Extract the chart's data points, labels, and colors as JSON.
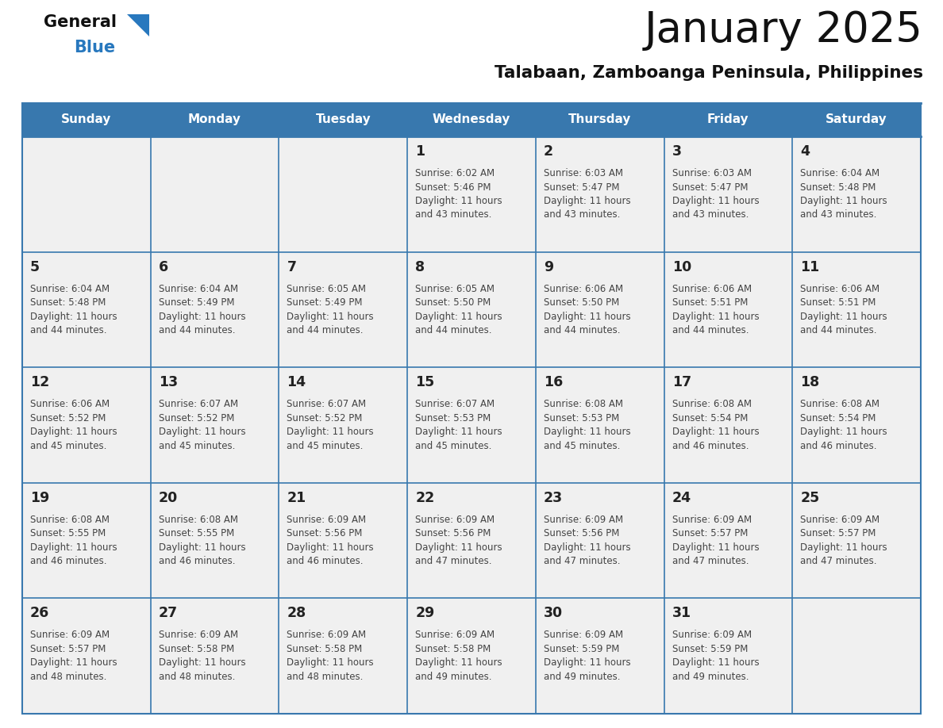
{
  "title": "January 2025",
  "subtitle": "Talabaan, Zamboanga Peninsula, Philippines",
  "header_bg_color": "#3878ae",
  "header_text_color": "#FFFFFF",
  "day_names": [
    "Sunday",
    "Monday",
    "Tuesday",
    "Wednesday",
    "Thursday",
    "Friday",
    "Saturday"
  ],
  "cell_bg_color": "#f0f0f0",
  "cell_border_color": "#3878ae",
  "title_color": "#111111",
  "subtitle_color": "#111111",
  "day_num_color": "#222222",
  "text_color": "#444444",
  "logo_general_color": "#111111",
  "logo_blue_color": "#2878be",
  "logo_triangle_color": "#2878be",
  "days": [
    {
      "day": 1,
      "col": 3,
      "row": 0,
      "sunrise": "6:02 AM",
      "sunset": "5:46 PM",
      "daylight_h": "11 hours",
      "daylight_m": "43 minutes."
    },
    {
      "day": 2,
      "col": 4,
      "row": 0,
      "sunrise": "6:03 AM",
      "sunset": "5:47 PM",
      "daylight_h": "11 hours",
      "daylight_m": "43 minutes."
    },
    {
      "day": 3,
      "col": 5,
      "row": 0,
      "sunrise": "6:03 AM",
      "sunset": "5:47 PM",
      "daylight_h": "11 hours",
      "daylight_m": "43 minutes."
    },
    {
      "day": 4,
      "col": 6,
      "row": 0,
      "sunrise": "6:04 AM",
      "sunset": "5:48 PM",
      "daylight_h": "11 hours",
      "daylight_m": "43 minutes."
    },
    {
      "day": 5,
      "col": 0,
      "row": 1,
      "sunrise": "6:04 AM",
      "sunset": "5:48 PM",
      "daylight_h": "11 hours",
      "daylight_m": "44 minutes."
    },
    {
      "day": 6,
      "col": 1,
      "row": 1,
      "sunrise": "6:04 AM",
      "sunset": "5:49 PM",
      "daylight_h": "11 hours",
      "daylight_m": "44 minutes."
    },
    {
      "day": 7,
      "col": 2,
      "row": 1,
      "sunrise": "6:05 AM",
      "sunset": "5:49 PM",
      "daylight_h": "11 hours",
      "daylight_m": "44 minutes."
    },
    {
      "day": 8,
      "col": 3,
      "row": 1,
      "sunrise": "6:05 AM",
      "sunset": "5:50 PM",
      "daylight_h": "11 hours",
      "daylight_m": "44 minutes."
    },
    {
      "day": 9,
      "col": 4,
      "row": 1,
      "sunrise": "6:06 AM",
      "sunset": "5:50 PM",
      "daylight_h": "11 hours",
      "daylight_m": "44 minutes."
    },
    {
      "day": 10,
      "col": 5,
      "row": 1,
      "sunrise": "6:06 AM",
      "sunset": "5:51 PM",
      "daylight_h": "11 hours",
      "daylight_m": "44 minutes."
    },
    {
      "day": 11,
      "col": 6,
      "row": 1,
      "sunrise": "6:06 AM",
      "sunset": "5:51 PM",
      "daylight_h": "11 hours",
      "daylight_m": "44 minutes."
    },
    {
      "day": 12,
      "col": 0,
      "row": 2,
      "sunrise": "6:06 AM",
      "sunset": "5:52 PM",
      "daylight_h": "11 hours",
      "daylight_m": "45 minutes."
    },
    {
      "day": 13,
      "col": 1,
      "row": 2,
      "sunrise": "6:07 AM",
      "sunset": "5:52 PM",
      "daylight_h": "11 hours",
      "daylight_m": "45 minutes."
    },
    {
      "day": 14,
      "col": 2,
      "row": 2,
      "sunrise": "6:07 AM",
      "sunset": "5:52 PM",
      "daylight_h": "11 hours",
      "daylight_m": "45 minutes."
    },
    {
      "day": 15,
      "col": 3,
      "row": 2,
      "sunrise": "6:07 AM",
      "sunset": "5:53 PM",
      "daylight_h": "11 hours",
      "daylight_m": "45 minutes."
    },
    {
      "day": 16,
      "col": 4,
      "row": 2,
      "sunrise": "6:08 AM",
      "sunset": "5:53 PM",
      "daylight_h": "11 hours",
      "daylight_m": "45 minutes."
    },
    {
      "day": 17,
      "col": 5,
      "row": 2,
      "sunrise": "6:08 AM",
      "sunset": "5:54 PM",
      "daylight_h": "11 hours",
      "daylight_m": "46 minutes."
    },
    {
      "day": 18,
      "col": 6,
      "row": 2,
      "sunrise": "6:08 AM",
      "sunset": "5:54 PM",
      "daylight_h": "11 hours",
      "daylight_m": "46 minutes."
    },
    {
      "day": 19,
      "col": 0,
      "row": 3,
      "sunrise": "6:08 AM",
      "sunset": "5:55 PM",
      "daylight_h": "11 hours",
      "daylight_m": "46 minutes."
    },
    {
      "day": 20,
      "col": 1,
      "row": 3,
      "sunrise": "6:08 AM",
      "sunset": "5:55 PM",
      "daylight_h": "11 hours",
      "daylight_m": "46 minutes."
    },
    {
      "day": 21,
      "col": 2,
      "row": 3,
      "sunrise": "6:09 AM",
      "sunset": "5:56 PM",
      "daylight_h": "11 hours",
      "daylight_m": "46 minutes."
    },
    {
      "day": 22,
      "col": 3,
      "row": 3,
      "sunrise": "6:09 AM",
      "sunset": "5:56 PM",
      "daylight_h": "11 hours",
      "daylight_m": "47 minutes."
    },
    {
      "day": 23,
      "col": 4,
      "row": 3,
      "sunrise": "6:09 AM",
      "sunset": "5:56 PM",
      "daylight_h": "11 hours",
      "daylight_m": "47 minutes."
    },
    {
      "day": 24,
      "col": 5,
      "row": 3,
      "sunrise": "6:09 AM",
      "sunset": "5:57 PM",
      "daylight_h": "11 hours",
      "daylight_m": "47 minutes."
    },
    {
      "day": 25,
      "col": 6,
      "row": 3,
      "sunrise": "6:09 AM",
      "sunset": "5:57 PM",
      "daylight_h": "11 hours",
      "daylight_m": "47 minutes."
    },
    {
      "day": 26,
      "col": 0,
      "row": 4,
      "sunrise": "6:09 AM",
      "sunset": "5:57 PM",
      "daylight_h": "11 hours",
      "daylight_m": "48 minutes."
    },
    {
      "day": 27,
      "col": 1,
      "row": 4,
      "sunrise": "6:09 AM",
      "sunset": "5:58 PM",
      "daylight_h": "11 hours",
      "daylight_m": "48 minutes."
    },
    {
      "day": 28,
      "col": 2,
      "row": 4,
      "sunrise": "6:09 AM",
      "sunset": "5:58 PM",
      "daylight_h": "11 hours",
      "daylight_m": "48 minutes."
    },
    {
      "day": 29,
      "col": 3,
      "row": 4,
      "sunrise": "6:09 AM",
      "sunset": "5:58 PM",
      "daylight_h": "11 hours",
      "daylight_m": "49 minutes."
    },
    {
      "day": 30,
      "col": 4,
      "row": 4,
      "sunrise": "6:09 AM",
      "sunset": "5:59 PM",
      "daylight_h": "11 hours",
      "daylight_m": "49 minutes."
    },
    {
      "day": 31,
      "col": 5,
      "row": 4,
      "sunrise": "6:09 AM",
      "sunset": "5:59 PM",
      "daylight_h": "11 hours",
      "daylight_m": "49 minutes."
    }
  ],
  "num_rows": 5,
  "num_cols": 7,
  "fig_width": 11.88,
  "fig_height": 9.18,
  "dpi": 100
}
